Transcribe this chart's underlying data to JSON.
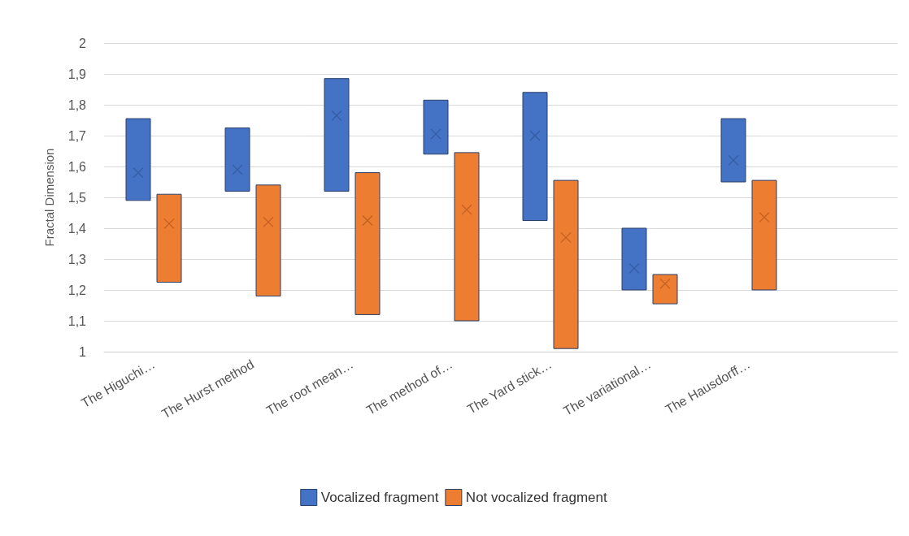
{
  "chart_data": {
    "type": "bar",
    "ylabel": "Fractal Dimension",
    "categories": [
      "The Higuchi…",
      "The Hurst method",
      "The root mean…",
      "The method of…",
      "The Yard stick…",
      "The variational…",
      "The Hausdorff…",
      null
    ],
    "series": [
      {
        "name": "Vocalized fragment",
        "color": "#4472c4",
        "base": [
          1.49,
          1.52,
          1.52,
          1.64,
          1.425,
          1.2,
          1.55,
          null
        ],
        "values": [
          0.265,
          0.205,
          0.365,
          0.175,
          0.415,
          0.2,
          0.205,
          null
        ]
      },
      {
        "name": "Not vocalized fragment",
        "color": "#ed7d31",
        "base": [
          1.225,
          1.18,
          1.12,
          1.1,
          1.01,
          1.155,
          1.2,
          null
        ],
        "values": [
          0.285,
          0.36,
          0.46,
          0.545,
          0.545,
          0.095,
          0.355,
          null
        ]
      },
      {
        "type": "scatter",
        "marker": "cross",
        "color": "#2f5597",
        "x": [
          "The Higuchi…",
          "The Hurst method",
          "The root mean…",
          "The method of…",
          "The Yard stick…",
          "The variational…",
          "The Hausdorff…"
        ],
        "values": [
          1.58,
          1.59,
          1.765,
          1.705,
          1.7,
          1.27,
          1.62
        ]
      },
      {
        "type": "scatter",
        "marker": "cross",
        "color": "#b5561b",
        "x": [
          "The Higuchi…",
          "The Hurst method",
          "The root mean…",
          "The method of…",
          "The Yard stick…",
          "The variational…",
          "The Hausdorff…"
        ],
        "values": [
          1.415,
          1.42,
          1.425,
          1.46,
          1.37,
          1.22,
          1.435
        ]
      }
    ],
    "ylim": [
      1,
      2
    ],
    "yticks": [
      1,
      {
        "value": 1.1,
        "label": "1,1"
      },
      {
        "value": 1.2,
        "label": "1,2"
      },
      {
        "value": 1.3,
        "label": "1,3"
      },
      {
        "value": 1.4,
        "label": "1,4"
      },
      {
        "value": 1.5,
        "label": "1,5"
      },
      {
        "value": 1.6,
        "label": "1,6"
      },
      {
        "value": 1.7,
        "label": "1,7"
      },
      {
        "value": 1.8,
        "label": "1,8"
      },
      {
        "value": 1.9,
        "label": "1,9"
      },
      2
    ],
    "grid": "y",
    "legend": "bottom"
  }
}
